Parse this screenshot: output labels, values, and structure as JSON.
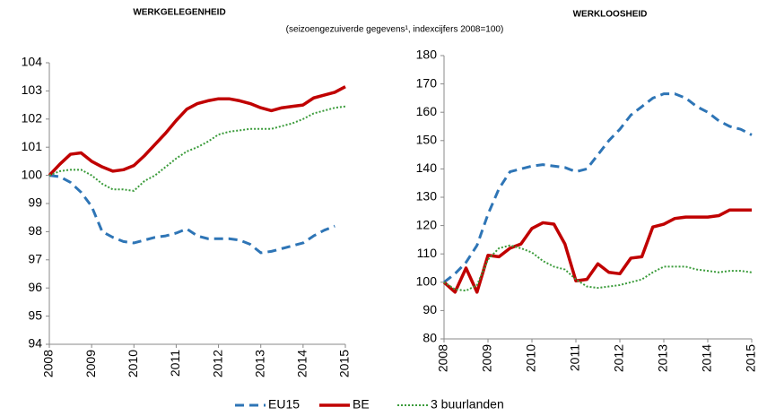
{
  "chart_data": [
    {
      "type": "line",
      "title": "WERKGELEGENHEID",
      "subtitle": "(seizoengezuiverde gegevens¹, indexcijfers 2008=100)",
      "x": [
        2008,
        2008.25,
        2008.5,
        2008.75,
        2009,
        2009.25,
        2009.5,
        2009.75,
        2010,
        2010.25,
        2010.5,
        2010.75,
        2011,
        2011.25,
        2011.5,
        2011.75,
        2012,
        2012.25,
        2012.5,
        2012.75,
        2013,
        2013.25,
        2013.5,
        2013.75,
        2014,
        2014.25,
        2014.5,
        2014.75,
        2015
      ],
      "xlim": [
        2008,
        2015
      ],
      "xticks": [
        2008,
        2009,
        2010,
        2011,
        2012,
        2013,
        2014,
        2015
      ],
      "ylim": [
        94,
        104
      ],
      "yticks": [
        94,
        95,
        96,
        97,
        98,
        99,
        100,
        101,
        102,
        103,
        104
      ],
      "series": [
        {
          "name": "EU15",
          "color": "#2e75b6",
          "style": "dashed",
          "values": [
            100,
            99.95,
            99.75,
            99.4,
            98.9,
            98.0,
            97.8,
            97.65,
            97.6,
            97.7,
            97.8,
            97.85,
            97.95,
            98.1,
            97.85,
            97.75,
            97.75,
            97.75,
            97.7,
            97.55,
            97.25,
            97.3,
            97.4,
            97.5,
            97.6,
            97.85,
            98.05,
            98.2,
            null
          ]
        },
        {
          "name": "BE",
          "color": "#c00000",
          "style": "solid",
          "values": [
            100,
            100.4,
            100.75,
            100.8,
            100.5,
            100.3,
            100.15,
            100.2,
            100.35,
            100.7,
            101.1,
            101.5,
            101.95,
            102.35,
            102.55,
            102.65,
            102.72,
            102.72,
            102.65,
            102.55,
            102.4,
            102.3,
            102.4,
            102.45,
            102.5,
            102.75,
            102.85,
            102.95,
            103.15
          ]
        },
        {
          "name": "3 buurlanden",
          "color": "#3a9b3a",
          "style": "dotted",
          "values": [
            100,
            100.15,
            100.2,
            100.2,
            100.0,
            99.7,
            99.5,
            99.5,
            99.45,
            99.8,
            100.0,
            100.3,
            100.6,
            100.85,
            101.0,
            101.2,
            101.45,
            101.55,
            101.6,
            101.65,
            101.65,
            101.65,
            101.75,
            101.85,
            102.0,
            102.2,
            102.3,
            102.4,
            102.45
          ]
        }
      ]
    },
    {
      "type": "line",
      "title": "WERKLOOSHEID",
      "x": [
        2008,
        2008.25,
        2008.5,
        2008.75,
        2009,
        2009.25,
        2009.5,
        2009.75,
        2010,
        2010.25,
        2010.5,
        2010.75,
        2011,
        2011.25,
        2011.5,
        2011.75,
        2012,
        2012.25,
        2012.5,
        2012.75,
        2013,
        2013.25,
        2013.5,
        2013.75,
        2014,
        2014.25,
        2014.5,
        2014.75,
        2015
      ],
      "xlim": [
        2008,
        2015
      ],
      "xticks": [
        2008,
        2009,
        2010,
        2011,
        2012,
        2013,
        2014,
        2015
      ],
      "ylim": [
        80,
        180
      ],
      "yticks": [
        80,
        90,
        100,
        110,
        120,
        130,
        140,
        150,
        160,
        170,
        180
      ],
      "series": [
        {
          "color": "#2e75b6",
          "style": "dashed",
          "values": [
            100,
            103,
            107,
            113,
            124,
            133,
            139,
            140,
            141,
            141.5,
            141,
            140.5,
            139,
            140,
            145,
            150,
            154,
            159,
            162,
            165,
            166.5,
            166.5,
            165,
            162,
            160,
            157,
            155,
            154,
            152
          ]
        },
        {
          "color": "#c00000",
          "style": "solid",
          "values": [
            100,
            96.5,
            105,
            96.5,
            109.5,
            109,
            112,
            113.5,
            119,
            121,
            120.5,
            113.5,
            100.5,
            101,
            106.5,
            103.5,
            103,
            108.5,
            109,
            119.5,
            120.5,
            122.5,
            123,
            123,
            123,
            123.5,
            125.5,
            125.5,
            125.5
          ]
        },
        {
          "color": "#3a9b3a",
          "style": "dotted",
          "values": [
            100,
            97.5,
            97,
            99,
            108,
            112,
            113,
            112,
            110.5,
            107.5,
            105.5,
            104.5,
            101,
            98.5,
            98,
            98.5,
            99,
            100,
            101,
            103.5,
            105.5,
            105.5,
            105.5,
            104.5,
            104,
            103.5,
            104,
            104,
            103.5
          ]
        }
      ]
    }
  ]
}
